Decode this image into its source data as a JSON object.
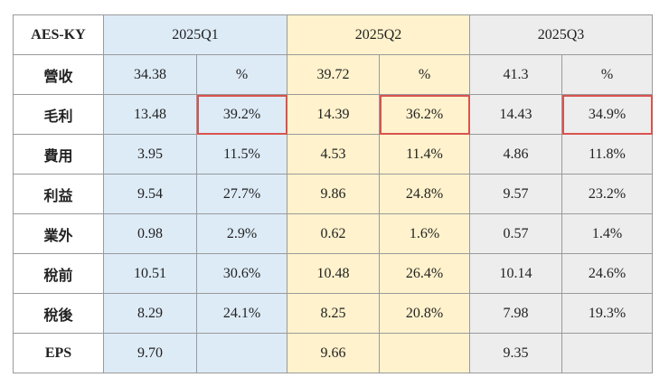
{
  "brand": "AES-KY",
  "quarters": [
    "2025Q1",
    "2025Q2",
    "2025Q3"
  ],
  "accent_colors": {
    "brand": "#c00000",
    "q1": "#ddebf7",
    "q2": "#fff2cc",
    "q3": "#ededed",
    "highlight": "#d9534f"
  },
  "rows": [
    {
      "label": "營收",
      "cells": [
        "34.38",
        "%",
        "39.72",
        "%",
        "41.3",
        "%"
      ]
    },
    {
      "label": "毛利",
      "cells": [
        "13.48",
        "39.2%",
        "14.39",
        "36.2%",
        "14.43",
        "34.9%"
      ]
    },
    {
      "label": "費用",
      "cells": [
        "3.95",
        "11.5%",
        "4.53",
        "11.4%",
        "4.86",
        "11.8%"
      ]
    },
    {
      "label": "利益",
      "cells": [
        "9.54",
        "27.7%",
        "9.86",
        "24.8%",
        "9.57",
        "23.2%"
      ]
    },
    {
      "label": "業外",
      "cells": [
        "0.98",
        "2.9%",
        "0.62",
        "1.6%",
        "0.57",
        "1.4%"
      ]
    },
    {
      "label": "稅前",
      "cells": [
        "10.51",
        "30.6%",
        "10.48",
        "26.4%",
        "10.14",
        "24.6%"
      ]
    },
    {
      "label": "稅後",
      "cells": [
        "8.29",
        "24.1%",
        "8.25",
        "20.8%",
        "7.98",
        "19.3%"
      ]
    },
    {
      "label": "EPS",
      "cells": [
        "9.70",
        "",
        "9.66",
        "",
        "9.35",
        ""
      ]
    }
  ]
}
